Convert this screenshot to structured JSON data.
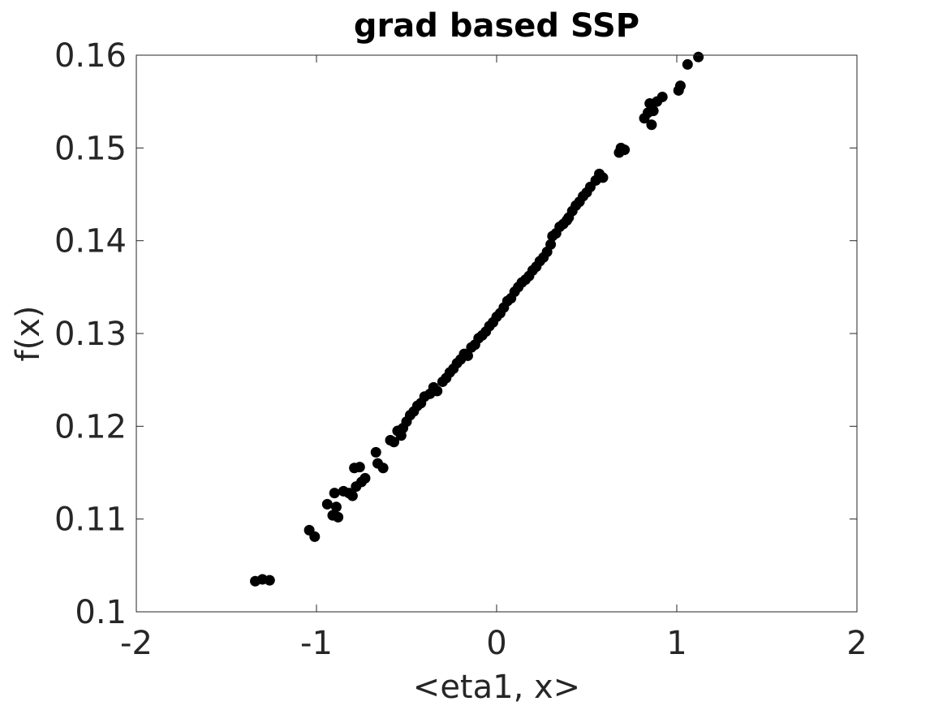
{
  "chart_data": {
    "type": "scatter",
    "title": "grad based SSP",
    "xlabel": "<eta1, x>",
    "ylabel": "f(x)",
    "xlim": [
      -2,
      2
    ],
    "ylim": [
      0.1,
      0.16
    ],
    "xticks": [
      -2,
      -1,
      0,
      1,
      2
    ],
    "xtick_labels": [
      "-2",
      "-1",
      "0",
      "1",
      "2"
    ],
    "yticks": [
      0.1,
      0.11,
      0.12,
      0.13,
      0.14,
      0.15,
      0.16
    ],
    "ytick_labels": [
      "0.1",
      "0.11",
      "0.12",
      "0.13",
      "0.14",
      "0.15",
      "0.16"
    ],
    "grid": false,
    "marker_color": "#000000",
    "axis_color": "#262626",
    "series": [
      {
        "x": [
          -1.34,
          -1.3,
          -1.26,
          -1.04,
          -1.01,
          -0.94,
          -0.91,
          -0.9,
          -0.89,
          -0.88,
          -0.85,
          -0.82,
          -0.8,
          -0.79,
          -0.78,
          -0.76,
          -0.75,
          -0.73,
          -0.67,
          -0.66,
          -0.63,
          -0.59,
          -0.57,
          -0.55,
          -0.53,
          -0.52,
          -0.5,
          -0.48,
          -0.46,
          -0.44,
          -0.42,
          -0.4,
          -0.37,
          -0.35,
          -0.33,
          -0.3,
          -0.28,
          -0.26,
          -0.24,
          -0.22,
          -0.2,
          -0.18,
          -0.16,
          -0.14,
          -0.12,
          -0.1,
          -0.08,
          -0.06,
          -0.04,
          -0.02,
          0.0,
          0.02,
          0.04,
          0.06,
          0.08,
          0.1,
          0.12,
          0.14,
          0.16,
          0.18,
          0.2,
          0.22,
          0.24,
          0.26,
          0.28,
          0.3,
          0.31,
          0.33,
          0.35,
          0.37,
          0.39,
          0.4,
          0.42,
          0.44,
          0.46,
          0.48,
          0.5,
          0.52,
          0.55,
          0.57,
          0.59,
          0.68,
          0.69,
          0.71,
          0.82,
          0.84,
          0.85,
          0.86,
          0.87,
          0.89,
          0.92,
          1.01,
          1.02,
          1.06,
          1.12
        ],
        "y": [
          0.1033,
          0.1035,
          0.1034,
          0.1088,
          0.1081,
          0.1116,
          0.1104,
          0.1128,
          0.1113,
          0.1102,
          0.113,
          0.1128,
          0.1125,
          0.1155,
          0.1135,
          0.1156,
          0.114,
          0.1144,
          0.1172,
          0.116,
          0.1155,
          0.1185,
          0.1183,
          0.1195,
          0.119,
          0.1198,
          0.1205,
          0.1212,
          0.1216,
          0.1222,
          0.1225,
          0.1232,
          0.1235,
          0.1242,
          0.1238,
          0.1248,
          0.1252,
          0.1258,
          0.1262,
          0.1268,
          0.1272,
          0.1278,
          0.1276,
          0.1285,
          0.1288,
          0.1295,
          0.1298,
          0.1302,
          0.1308,
          0.1312,
          0.1318,
          0.1322,
          0.1328,
          0.1335,
          0.1338,
          0.1345,
          0.135,
          0.1355,
          0.1358,
          0.1362,
          0.1368,
          0.1372,
          0.1378,
          0.1382,
          0.1388,
          0.1396,
          0.1405,
          0.1408,
          0.1415,
          0.1418,
          0.1422,
          0.1425,
          0.1432,
          0.1438,
          0.1442,
          0.1448,
          0.1452,
          0.1458,
          0.1465,
          0.1472,
          0.1468,
          0.1495,
          0.15,
          0.1498,
          0.1532,
          0.1538,
          0.1548,
          0.1525,
          0.154,
          0.155,
          0.1555,
          0.1562,
          0.1567,
          0.159,
          0.1598
        ]
      }
    ]
  }
}
